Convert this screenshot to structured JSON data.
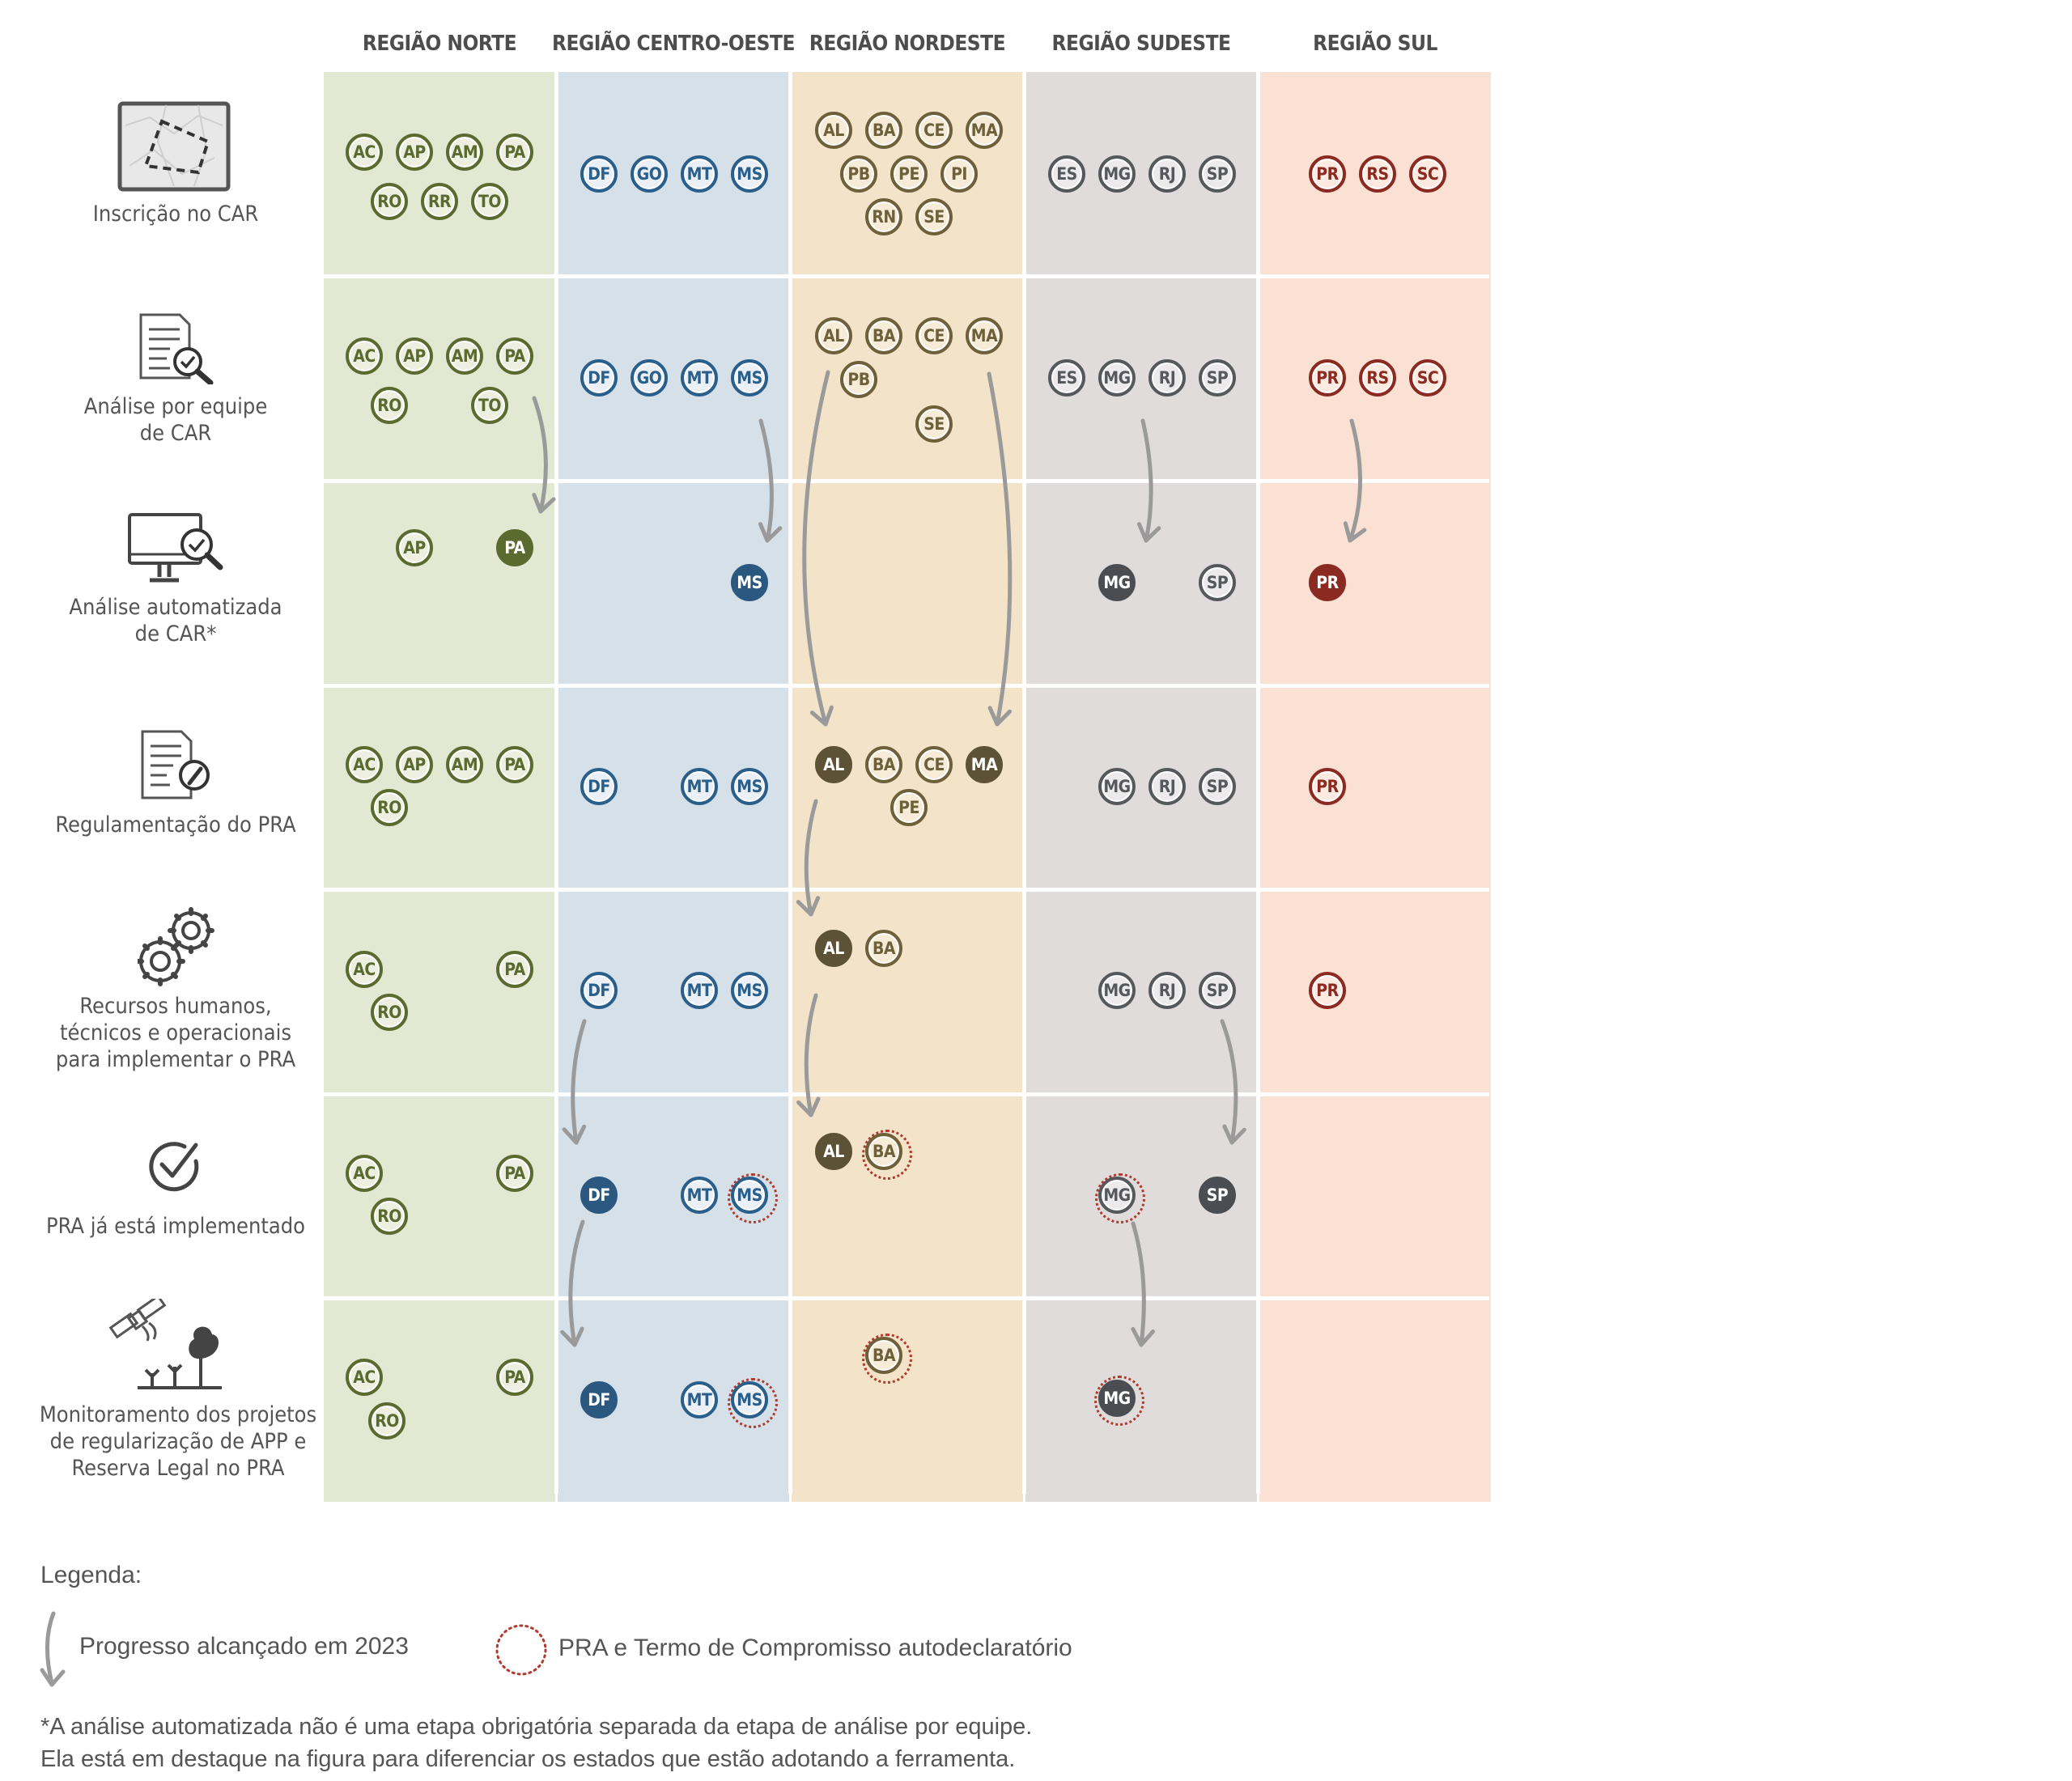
{
  "regions": [
    {
      "key": "norte",
      "header": "REGIÃO NORTE",
      "bg": "#e3e8d3",
      "fill": "#5b6a2e",
      "stroke": "#5b6a2e",
      "text_filled": "#ffffff",
      "text": "#5b6a2e"
    },
    {
      "key": "centro",
      "header": "REGIÃO CENTRO-OESTE",
      "bg": "#d5e0e9",
      "fill": "#2a587f",
      "stroke": "#2a5f8c",
      "text_filled": "#ffffff",
      "text": "#2a5f8c"
    },
    {
      "key": "nordeste",
      "header": "REGIÃO NORDESTE",
      "bg": "#f2e3c9",
      "fill": "#5e5236",
      "stroke": "#6e603a",
      "text_filled": "#ffffff",
      "text": "#6e603a"
    },
    {
      "key": "sudeste",
      "header": "REGIÃO SUDESTE",
      "bg": "#e0dcdc",
      "fill": "#4a4e52",
      "stroke": "#56595c",
      "text_filled": "#ffffff",
      "text": "#56595c"
    },
    {
      "key": "sul",
      "header": "REGIÃO SUL",
      "bg": "#fbe0d4",
      "fill": "#8b2a20",
      "stroke": "#8b2a20",
      "text_filled": "#ffffff",
      "text": "#8b2a20"
    }
  ],
  "stages": [
    {
      "label": "Inscrição no CAR",
      "icon": "map-icon"
    },
    {
      "label": "Análise por equipe\nde CAR",
      "icon": "document-check-icon"
    },
    {
      "label": "Análise automatizada\nde CAR*",
      "icon": "computer-search-icon"
    },
    {
      "label": "Regulamentação do PRA",
      "icon": "document-edit-icon"
    },
    {
      "label": "Recursos humanos,\ntécnicos e operacionais\npara implementar o PRA",
      "icon": "gears-icon"
    },
    {
      "label": "PRA já está implementado",
      "icon": "check-circle-icon"
    },
    {
      "label": "Monitoramento dos projetos\nde regularização de APP e\nReserva Legal no PRA",
      "icon": "satellite-trees-icon"
    }
  ],
  "states": {
    "norte": [
      [
        [
          "AC",
          "o"
        ],
        [
          "AP",
          "o"
        ],
        [
          "AM",
          "o"
        ],
        [
          "PA",
          "o"
        ],
        [
          "RO",
          "o"
        ],
        [
          "RR",
          "o"
        ],
        [
          "TO",
          "o"
        ]
      ],
      [
        [
          "AC",
          "o"
        ],
        [
          "AP",
          "o"
        ],
        [
          "AM",
          "o"
        ],
        [
          "PA",
          "o"
        ],
        [
          "RO",
          "o"
        ],
        [
          "TO",
          "o"
        ]
      ],
      [
        [
          "AP",
          "o"
        ],
        [
          "PA",
          "f"
        ]
      ],
      [
        [
          "AC",
          "o"
        ],
        [
          "AP",
          "o"
        ],
        [
          "AM",
          "o"
        ],
        [
          "PA",
          "o"
        ],
        [
          "RO",
          "o"
        ]
      ],
      [
        [
          "AC",
          "o"
        ],
        [
          "PA",
          "o"
        ],
        [
          "RO",
          "o"
        ]
      ],
      [
        [
          "AC",
          "o"
        ],
        [
          "PA",
          "o"
        ],
        [
          "RO",
          "o"
        ]
      ],
      [
        [
          "AC",
          "o"
        ],
        [
          "PA",
          "o"
        ],
        [
          "RO",
          "o"
        ]
      ]
    ],
    "centro": [
      [
        [
          "DF",
          "o"
        ],
        [
          "GO",
          "o"
        ],
        [
          "MT",
          "o"
        ],
        [
          "MS",
          "o"
        ]
      ],
      [
        [
          "DF",
          "o"
        ],
        [
          "GO",
          "o"
        ],
        [
          "MT",
          "o"
        ],
        [
          "MS",
          "o"
        ]
      ],
      [
        [
          "MS",
          "f"
        ]
      ],
      [
        [
          "DF",
          "o"
        ],
        [
          "MT",
          "o"
        ],
        [
          "MS",
          "o"
        ]
      ],
      [
        [
          "DF",
          "o"
        ],
        [
          "MT",
          "o"
        ],
        [
          "MS",
          "o"
        ]
      ],
      [
        [
          "DF",
          "f"
        ],
        [
          "MT",
          "o"
        ],
        [
          "MS",
          "s"
        ]
      ],
      [
        [
          "DF",
          "f"
        ],
        [
          "MT",
          "o"
        ],
        [
          "MS",
          "s"
        ]
      ]
    ],
    "nordeste": [
      [
        [
          "AL",
          "o"
        ],
        [
          "BA",
          "o"
        ],
        [
          "CE",
          "o"
        ],
        [
          "MA",
          "o"
        ],
        [
          "PB",
          "o"
        ],
        [
          "PE",
          "o"
        ],
        [
          "PI",
          "o"
        ],
        [
          "RN",
          "o"
        ],
        [
          "SE",
          "o"
        ]
      ],
      [
        [
          "AL",
          "o"
        ],
        [
          "BA",
          "o"
        ],
        [
          "CE",
          "o"
        ],
        [
          "MA",
          "o"
        ],
        [
          "PB",
          "o"
        ],
        [
          "SE",
          "o"
        ]
      ],
      [],
      [
        [
          "AL",
          "f"
        ],
        [
          "BA",
          "o"
        ],
        [
          "CE",
          "o"
        ],
        [
          "MA",
          "f"
        ],
        [
          "PE",
          "o"
        ]
      ],
      [
        [
          "AL",
          "f"
        ],
        [
          "BA",
          "o"
        ]
      ],
      [
        [
          "AL",
          "f"
        ],
        [
          "BA",
          "s"
        ]
      ],
      [
        [
          "BA",
          "s"
        ]
      ]
    ],
    "sudeste": [
      [
        [
          "ES",
          "o"
        ],
        [
          "MG",
          "o"
        ],
        [
          "RJ",
          "o"
        ],
        [
          "SP",
          "o"
        ]
      ],
      [
        [
          "ES",
          "o"
        ],
        [
          "MG",
          "o"
        ],
        [
          "RJ",
          "o"
        ],
        [
          "SP",
          "o"
        ]
      ],
      [
        [
          "MG",
          "f"
        ],
        [
          "SP",
          "o"
        ]
      ],
      [
        [
          "MG",
          "o"
        ],
        [
          "RJ",
          "o"
        ],
        [
          "SP",
          "o"
        ]
      ],
      [
        [
          "MG",
          "o"
        ],
        [
          "RJ",
          "o"
        ],
        [
          "SP",
          "o"
        ]
      ],
      [
        [
          "MG",
          "s"
        ],
        [
          "SP",
          "f"
        ]
      ],
      [
        [
          "MG",
          "fs"
        ]
      ]
    ],
    "sul": [
      [
        [
          "PR",
          "o"
        ],
        [
          "RS",
          "o"
        ],
        [
          "SC",
          "o"
        ]
      ],
      [
        [
          "PR",
          "o"
        ],
        [
          "RS",
          "o"
        ],
        [
          "SC",
          "o"
        ]
      ],
      [
        [
          "PR",
          "f"
        ]
      ],
      [
        [
          "PR",
          "o"
        ]
      ],
      [
        [
          "PR",
          "o"
        ]
      ],
      [],
      []
    ]
  },
  "legend": {
    "title": "Legenda:",
    "progress": "Progresso alcançado em 2023",
    "self_declared": "PRA e Termo de Compromisso autodeclaratório"
  },
  "footnote": {
    "line1": "*A análise automatizada não é uma etapa obrigatória separada da etapa de análise por equipe.",
    "line2": "Ela está em destaque na figura para diferenciar os estados que estão adotando a ferramenta."
  },
  "colors": {
    "arrow": "#9a9a9a",
    "self_declared_ring": "#b03a2e",
    "label_text": "#555555"
  }
}
